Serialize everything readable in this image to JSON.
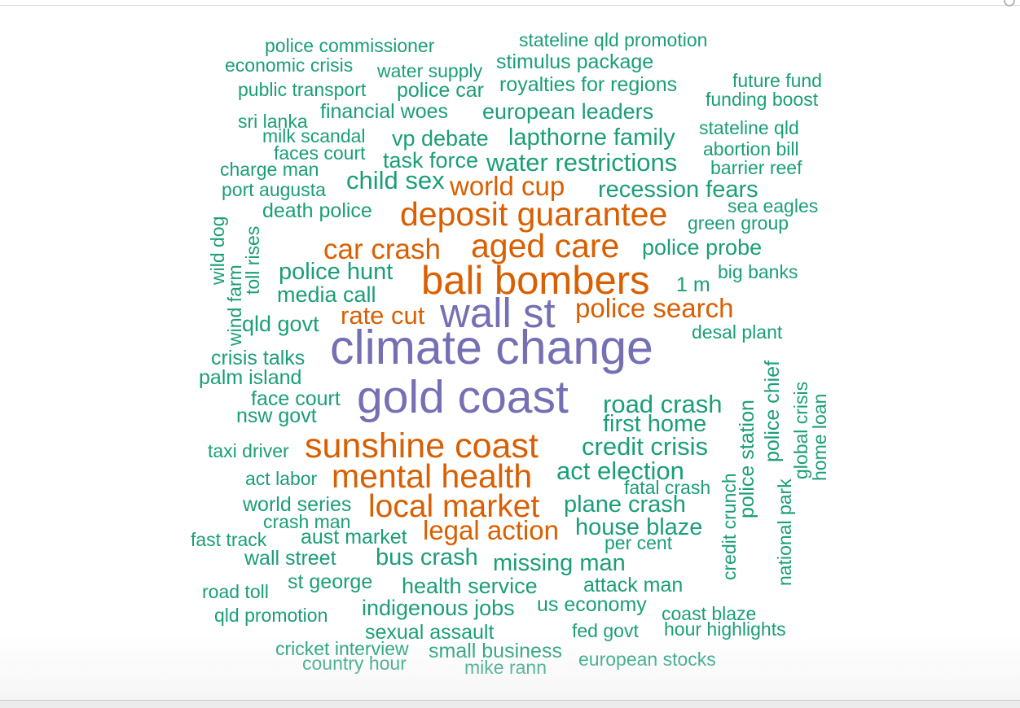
{
  "colors": {
    "teal": "#1b9e77",
    "orange": "#d95f02",
    "purple": "#7570b3"
  },
  "words": [
    "police commissioner",
    "stateline qld promotion",
    "economic crisis",
    "water supply",
    "stimulus package",
    "public transport",
    "police car",
    "royalties for regions",
    "future fund",
    "funding boost",
    "sri lanka",
    "financial woes",
    "european leaders",
    "stateline qld",
    "milk scandal",
    "vp debate",
    "lapthorne family",
    "faces court",
    "abortion bill",
    "charge man",
    "task force",
    "water restrictions",
    "barrier reef",
    "port augusta",
    "child sex",
    "world cup",
    "recession fears",
    "sea eagles",
    "death police",
    "deposit guarantee",
    "green group",
    "wild dog",
    "toll rises",
    "car crash",
    "aged care",
    "police probe",
    "wind farm",
    "police hunt",
    "big banks",
    "bali bombers",
    "1 m",
    "media call",
    "rate cut",
    "wall st",
    "police search",
    "qld govt",
    "desal plant",
    "climate change",
    "crisis talks",
    "palm island",
    "police chief",
    "face court",
    "gold coast",
    "road crash",
    "police station",
    "global crisis",
    "home loan",
    "nsw govt",
    "first home",
    "taxi driver",
    "sunshine coast",
    "credit crisis",
    "act labor",
    "mental health",
    "act election",
    "credit crunch",
    "fatal crash",
    "national park",
    "world series",
    "local market",
    "plane crash",
    "crash man",
    "house blaze",
    "legal action",
    "fast track",
    "aust market",
    "per cent",
    "wall street",
    "bus crash",
    "missing man",
    "road toll",
    "st george",
    "health service",
    "attack man",
    "qld promotion",
    "indigenous jobs",
    "us economy",
    "coast blaze",
    "sexual assault",
    "fed govt",
    "hour highlights",
    "cricket interview",
    "small business",
    "european stocks",
    "country hour",
    "mike rann"
  ]
}
